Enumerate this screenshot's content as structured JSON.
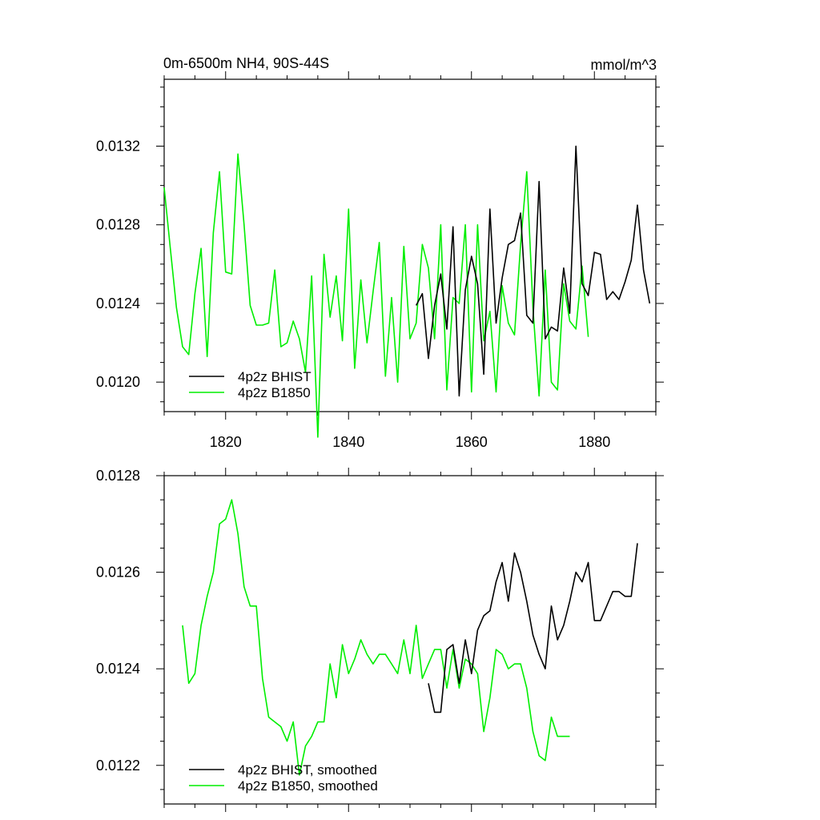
{
  "chart_data": [
    {
      "type": "line",
      "title": "0m-6500m NH4, 90S-44S",
      "units": "mmol/m^3",
      "xlim": [
        1810,
        1890
      ],
      "ylim": [
        0.01185,
        0.01354
      ],
      "x_major_ticks": [
        1820,
        1840,
        1860,
        1880
      ],
      "x_tick_labels": [
        "1820",
        "1840",
        "1860",
        "1880"
      ],
      "y_major_ticks": [
        0.012,
        0.0124,
        0.0128,
        0.0132
      ],
      "y_tick_labels": [
        "0.0120",
        "0.0124",
        "0.0128",
        "0.0132"
      ],
      "legend_position": "bottom-left",
      "series": [
        {
          "name": "4p2z BHIST",
          "color": "#000000",
          "x": [
            1851,
            1852,
            1853,
            1854,
            1855,
            1856,
            1857,
            1858,
            1859,
            1860,
            1861,
            1862,
            1863,
            1864,
            1865,
            1866,
            1867,
            1868,
            1869,
            1870,
            1871,
            1872,
            1873,
            1874,
            1875,
            1876,
            1877,
            1878,
            1879,
            1880,
            1881,
            1882,
            1883,
            1884,
            1885,
            1886,
            1887,
            1888,
            1889
          ],
          "y": [
            0.01239,
            0.01245,
            0.01212,
            0.01239,
            0.01255,
            0.01227,
            0.01279,
            0.01193,
            0.01247,
            0.01264,
            0.0125,
            0.01204,
            0.01288,
            0.0123,
            0.01253,
            0.0127,
            0.01272,
            0.01286,
            0.01234,
            0.0123,
            0.01302,
            0.01222,
            0.01228,
            0.01226,
            0.01258,
            0.01235,
            0.0132,
            0.0125,
            0.01244,
            0.01266,
            0.01265,
            0.01242,
            0.01246,
            0.01242,
            0.01251,
            0.01262,
            0.0129,
            0.01257,
            0.0124
          ]
        },
        {
          "name": "4p2z B1850",
          "color": "#00ee00",
          "x": [
            1810,
            1811,
            1812,
            1813,
            1814,
            1815,
            1816,
            1817,
            1818,
            1819,
            1820,
            1821,
            1822,
            1823,
            1824,
            1825,
            1826,
            1827,
            1828,
            1829,
            1830,
            1831,
            1832,
            1833,
            1834,
            1835,
            1836,
            1837,
            1838,
            1839,
            1840,
            1841,
            1842,
            1843,
            1844,
            1845,
            1846,
            1847,
            1848,
            1849,
            1850,
            1851,
            1852,
            1853,
            1854,
            1855,
            1856,
            1857,
            1858,
            1859,
            1860,
            1861,
            1862,
            1863,
            1864,
            1865,
            1866,
            1867,
            1868,
            1869,
            1870,
            1871,
            1872,
            1873,
            1874,
            1875,
            1876,
            1877,
            1878,
            1879
          ],
          "y": [
            0.01299,
            0.01268,
            0.01238,
            0.01218,
            0.01214,
            0.01245,
            0.01268,
            0.01213,
            0.01276,
            0.01307,
            0.01256,
            0.01255,
            0.01316,
            0.0128,
            0.01239,
            0.01229,
            0.01229,
            0.0123,
            0.01257,
            0.01218,
            0.0122,
            0.01231,
            0.01222,
            0.01205,
            0.01254,
            0.01172,
            0.01265,
            0.01233,
            0.01254,
            0.01221,
            0.01288,
            0.01207,
            0.01252,
            0.0122,
            0.01246,
            0.01271,
            0.01203,
            0.01243,
            0.012,
            0.01269,
            0.01222,
            0.0123,
            0.0127,
            0.01258,
            0.01222,
            0.0128,
            0.01196,
            0.01243,
            0.0124,
            0.0128,
            0.01195,
            0.0128,
            0.01221,
            0.01236,
            0.01195,
            0.01249,
            0.0123,
            0.01224,
            0.0127,
            0.01307,
            0.01238,
            0.01193,
            0.01257,
            0.012,
            0.01196,
            0.0125,
            0.01231,
            0.01227,
            0.01259,
            0.01223
          ]
        }
      ]
    },
    {
      "type": "line",
      "xlim": [
        1810,
        1890
      ],
      "ylim": [
        0.01212,
        0.0128
      ],
      "x_major_ticks": [
        1820,
        1840,
        1860,
        1880
      ],
      "y_major_ticks": [
        0.0122,
        0.0124,
        0.0126,
        0.0128
      ],
      "y_tick_labels": [
        "0.0122",
        "0.0124",
        "0.0126",
        "0.0128"
      ],
      "legend_position": "bottom-left",
      "series": [
        {
          "name": "4p2z BHIST, smoothed",
          "color": "#000000",
          "x": [
            1853,
            1854,
            1855,
            1856,
            1857,
            1858,
            1859,
            1860,
            1861,
            1862,
            1863,
            1864,
            1865,
            1866,
            1867,
            1868,
            1869,
            1870,
            1871,
            1872,
            1873,
            1874,
            1875,
            1876,
            1877,
            1878,
            1879,
            1880,
            1881,
            1882,
            1883,
            1884,
            1885,
            1886,
            1887
          ],
          "y": [
            0.01237,
            0.01231,
            0.01231,
            0.01244,
            0.01245,
            0.01237,
            0.01246,
            0.01239,
            0.01248,
            0.01251,
            0.01252,
            0.01258,
            0.01262,
            0.01254,
            0.01264,
            0.0126,
            0.01254,
            0.01247,
            0.01243,
            0.0124,
            0.01253,
            0.01246,
            0.01249,
            0.01254,
            0.0126,
            0.01258,
            0.01262,
            0.0125,
            0.0125,
            0.01253,
            0.01256,
            0.01256,
            0.01255,
            0.01255,
            0.01266
          ]
        },
        {
          "name": "4p2z B1850, smoothed",
          "color": "#00ee00",
          "x": [
            1813,
            1814,
            1815,
            1816,
            1817,
            1818,
            1819,
            1820,
            1821,
            1822,
            1823,
            1824,
            1825,
            1826,
            1827,
            1828,
            1829,
            1830,
            1831,
            1832,
            1833,
            1834,
            1835,
            1836,
            1837,
            1838,
            1839,
            1840,
            1841,
            1842,
            1843,
            1844,
            1845,
            1846,
            1847,
            1848,
            1849,
            1850,
            1851,
            1852,
            1853,
            1854,
            1855,
            1856,
            1857,
            1858,
            1859,
            1860,
            1861,
            1862,
            1863,
            1864,
            1865,
            1866,
            1867,
            1868,
            1869,
            1870,
            1871,
            1872,
            1873,
            1874,
            1875,
            1876
          ],
          "y": [
            0.01249,
            0.01237,
            0.01239,
            0.01249,
            0.01255,
            0.0126,
            0.0127,
            0.01271,
            0.01275,
            0.01268,
            0.01257,
            0.01253,
            0.01253,
            0.01238,
            0.0123,
            0.01229,
            0.01228,
            0.01225,
            0.01229,
            0.01218,
            0.01224,
            0.01226,
            0.01229,
            0.01229,
            0.01241,
            0.01234,
            0.01245,
            0.01239,
            0.01242,
            0.01246,
            0.01243,
            0.01241,
            0.01243,
            0.01243,
            0.01241,
            0.01239,
            0.01246,
            0.01239,
            0.01249,
            0.01238,
            0.01241,
            0.01244,
            0.01244,
            0.01236,
            0.01244,
            0.01236,
            0.01242,
            0.01241,
            0.01239,
            0.01227,
            0.01234,
            0.01244,
            0.01243,
            0.0124,
            0.01241,
            0.01241,
            0.01236,
            0.01227,
            0.01222,
            0.01221,
            0.0123,
            0.01226,
            0.01226,
            0.01226
          ]
        }
      ]
    }
  ]
}
